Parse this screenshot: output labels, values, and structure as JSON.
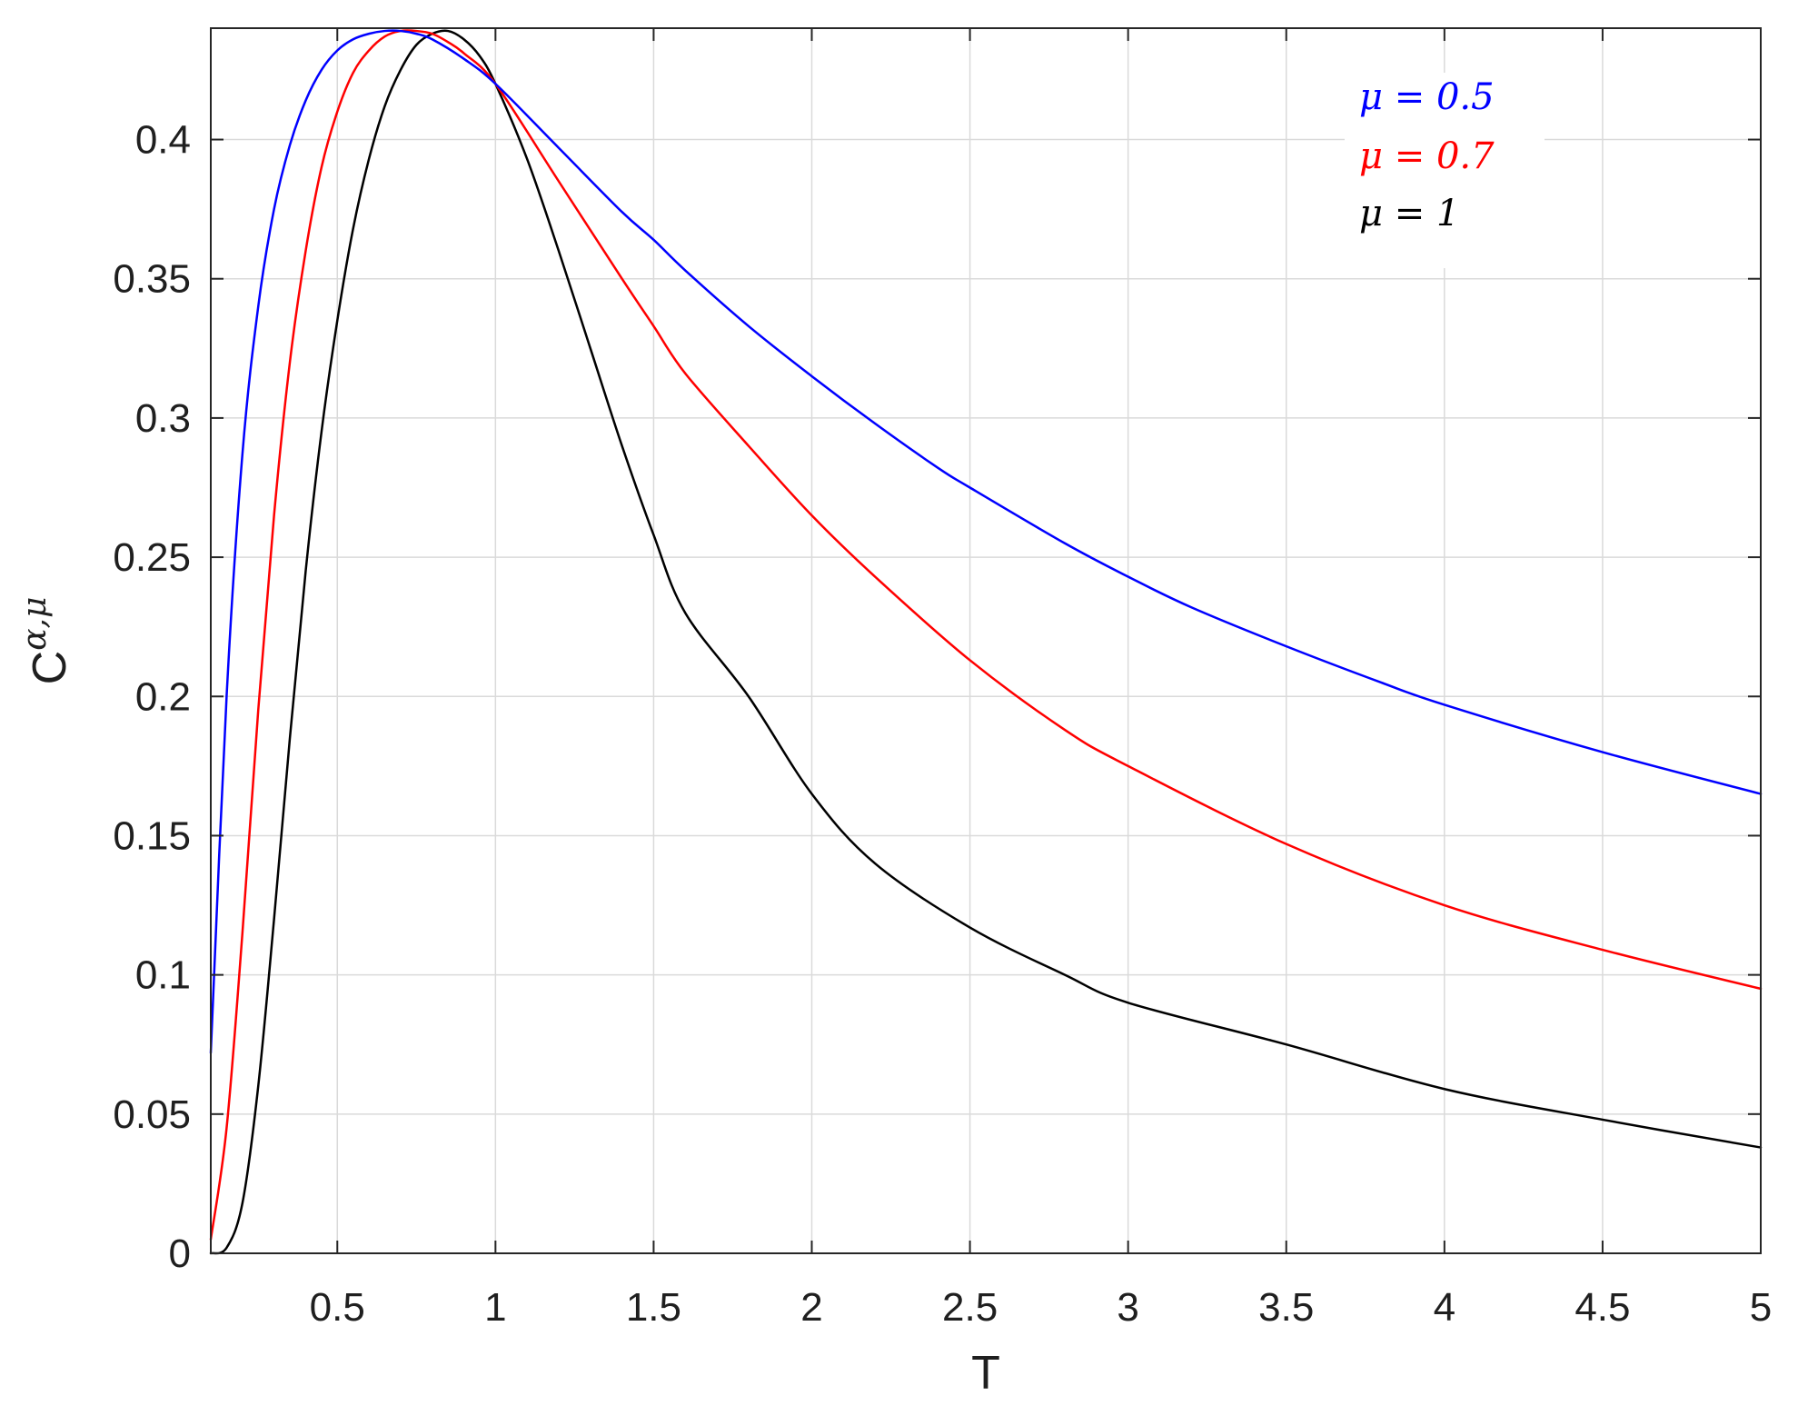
{
  "chart_data": {
    "type": "line",
    "xlabel": "T",
    "ylabel": "C",
    "ylabel_superscript": "α,μ",
    "xlim": [
      0.1,
      5
    ],
    "ylim": [
      0,
      0.44
    ],
    "xticks": [
      0.5,
      1,
      1.5,
      2,
      2.5,
      3,
      3.5,
      4,
      4.5,
      5
    ],
    "yticks": [
      0,
      0.05,
      0.1,
      0.15,
      0.2,
      0.25,
      0.3,
      0.35,
      0.4
    ],
    "xtick_labels": [
      "0.5",
      "1",
      "1.5",
      "2",
      "2.5",
      "3",
      "3.5",
      "4",
      "4.5",
      "5"
    ],
    "ytick_labels": [
      "0",
      "0.05",
      "0.1",
      "0.15",
      "0.2",
      "0.25",
      "0.3",
      "0.35",
      "0.4"
    ],
    "grid": true,
    "legend_position": "top-right",
    "series": [
      {
        "name": "μ = 0.5",
        "color": "#0000ff",
        "x": [
          0.1,
          0.15,
          0.2,
          0.25,
          0.3,
          0.35,
          0.4,
          0.45,
          0.5,
          0.55,
          0.6,
          0.65,
          0.7,
          0.75,
          0.8,
          0.9,
          1.0,
          1.2,
          1.4,
          1.5,
          1.6,
          1.8,
          2.0,
          2.2,
          2.4,
          2.5,
          2.8,
          3.0,
          3.2,
          3.5,
          3.8,
          4.0,
          4.5,
          5.0
        ],
        "y": [
          0.072,
          0.2,
          0.287,
          0.34,
          0.375,
          0.398,
          0.414,
          0.425,
          0.432,
          0.436,
          0.438,
          0.439,
          0.439,
          0.438,
          0.436,
          0.429,
          0.42,
          0.397,
          0.374,
          0.364,
          0.353,
          0.333,
          0.315,
          0.298,
          0.282,
          0.275,
          0.255,
          0.243,
          0.232,
          0.218,
          0.205,
          0.197,
          0.18,
          0.165
        ]
      },
      {
        "name": "μ = 0.7",
        "color": "#ff0000",
        "x": [
          0.1,
          0.15,
          0.2,
          0.25,
          0.3,
          0.35,
          0.4,
          0.45,
          0.5,
          0.55,
          0.6,
          0.65,
          0.7,
          0.75,
          0.8,
          0.85,
          0.9,
          1.0,
          1.2,
          1.4,
          1.5,
          1.6,
          1.8,
          2.0,
          2.2,
          2.5,
          2.8,
          3.0,
          3.5,
          4.0,
          4.5,
          5.0
        ],
        "y": [
          0.005,
          0.045,
          0.115,
          0.195,
          0.265,
          0.32,
          0.36,
          0.39,
          0.41,
          0.424,
          0.432,
          0.437,
          0.439,
          0.439,
          0.438,
          0.435,
          0.431,
          0.42,
          0.385,
          0.35,
          0.333,
          0.316,
          0.29,
          0.265,
          0.243,
          0.213,
          0.188,
          0.175,
          0.147,
          0.125,
          0.109,
          0.095
        ]
      },
      {
        "name": "μ = 1",
        "color": "#000000",
        "x": [
          0.1,
          0.15,
          0.2,
          0.25,
          0.3,
          0.35,
          0.4,
          0.45,
          0.5,
          0.55,
          0.6,
          0.65,
          0.7,
          0.75,
          0.8,
          0.85,
          0.9,
          0.95,
          1.0,
          1.1,
          1.2,
          1.3,
          1.4,
          1.5,
          1.6,
          1.8,
          2.0,
          2.2,
          2.5,
          2.8,
          3.0,
          3.5,
          4.0,
          4.5,
          5.0
        ],
        "y": [
          0.0,
          0.002,
          0.018,
          0.06,
          0.12,
          0.185,
          0.245,
          0.295,
          0.335,
          0.368,
          0.393,
          0.412,
          0.425,
          0.434,
          0.438,
          0.439,
          0.436,
          0.43,
          0.42,
          0.393,
          0.36,
          0.325,
          0.29,
          0.258,
          0.23,
          0.2,
          0.165,
          0.14,
          0.117,
          0.1,
          0.09,
          0.075,
          0.059,
          0.048,
          0.038
        ]
      }
    ]
  }
}
